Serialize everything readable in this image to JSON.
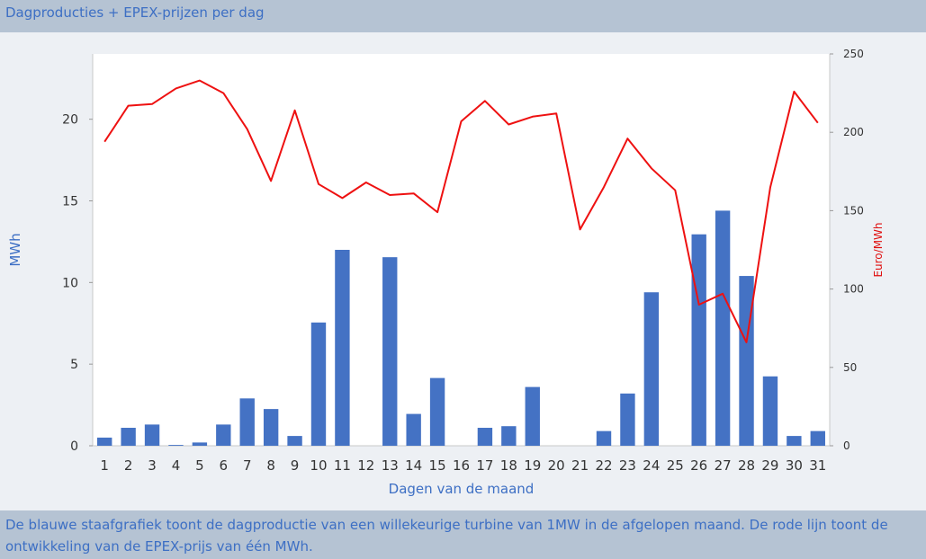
{
  "header": {
    "title": "Dagproducties + EPEX-prijzen per dag"
  },
  "footer": {
    "description": "De blauwe staafgrafiek toont de dagproductie van een willekeurige turbine van 1MW in de afgelopen maand. De rode lijn toont de ontwikkeling van de EPEX-prijs van één MWh."
  },
  "colors": {
    "bar": "#4472c4",
    "line": "#ee1111",
    "axis_left": "#3d6fc4",
    "axis_right": "#e01010",
    "plot_bg": "#ffffff",
    "page_bg": "#edf0f4"
  },
  "chart_data": {
    "type": "bar+line",
    "title": "Dagproducties + EPEX-prijzen per dag",
    "xlabel": "Dagen van de maand",
    "ylabel_left": "MWh",
    "ylabel_right": "Euro/MWh",
    "ylim_left": [
      0,
      24
    ],
    "ylim_right": [
      0,
      250
    ],
    "yticks_left": [
      0,
      5,
      10,
      15,
      20
    ],
    "yticks_right": [
      0,
      50,
      100,
      150,
      200,
      250
    ],
    "grid": false,
    "categories": [
      "1",
      "2",
      "3",
      "4",
      "5",
      "6",
      "7",
      "8",
      "9",
      "10",
      "11",
      "12",
      "13",
      "14",
      "15",
      "16",
      "17",
      "18",
      "19",
      "20",
      "21",
      "22",
      "23",
      "24",
      "25",
      "26",
      "27",
      "28",
      "29",
      "30",
      "31"
    ],
    "series": [
      {
        "type": "bar",
        "axis": "left",
        "values": [
          0.5,
          1.1,
          1.3,
          0.05,
          0.2,
          1.3,
          2.9,
          2.25,
          0.6,
          7.55,
          12.0,
          0.0,
          11.55,
          1.95,
          4.15,
          0.0,
          1.1,
          1.2,
          3.6,
          0.0,
          0.0,
          0.9,
          3.2,
          9.4,
          0.0,
          12.95,
          14.4,
          10.4,
          4.25,
          0.6,
          0.9
        ]
      },
      {
        "type": "line",
        "axis": "right",
        "values": [
          194,
          217,
          218,
          228,
          233,
          225,
          202,
          169,
          214,
          167,
          158,
          168,
          160,
          161,
          149,
          207,
          220,
          205,
          210,
          212,
          138,
          165,
          196,
          177,
          163,
          90,
          97,
          66,
          165,
          226,
          206
        ]
      }
    ]
  }
}
